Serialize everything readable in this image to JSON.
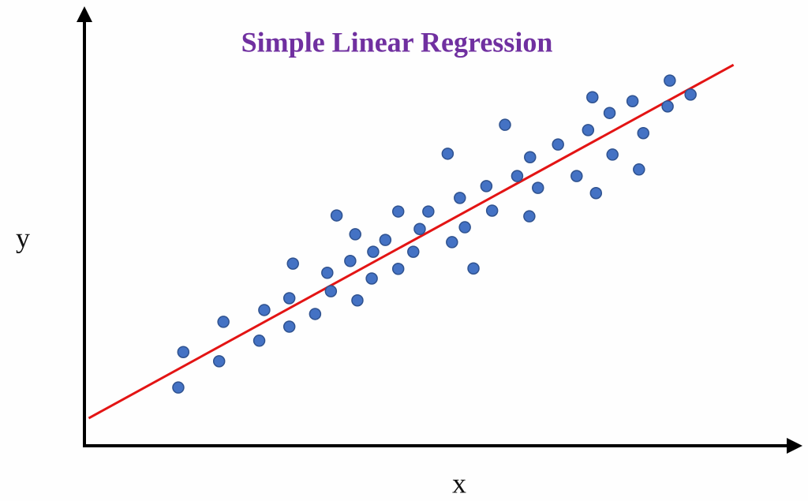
{
  "chart_data": {
    "type": "scatter",
    "title": "Simple Linear Regression",
    "title_color": "#7030a0",
    "x_label": "x",
    "y_label": "y",
    "xlim": [
      0,
      100
    ],
    "ylim": [
      0,
      100
    ],
    "series": [
      {
        "type": "scatter",
        "color": "#4472c4",
        "x": [
          13.1,
          13.8,
          19.4,
          18.8,
          24.4,
          25.1,
          28.6,
          28.6,
          29.1,
          32.2,
          33.9,
          34.4,
          35.2,
          37.1,
          37.8,
          38.1,
          40.1,
          40.3,
          42.0,
          43.8,
          43.8,
          45.9,
          46.8,
          48.0,
          50.7,
          51.3,
          52.4,
          53.1,
          54.3,
          56.1,
          56.9,
          58.7,
          60.4,
          62.1,
          62.2,
          63.3,
          66.1,
          68.7,
          70.3,
          70.9,
          71.4,
          73.3,
          73.7,
          76.5,
          77.4,
          78.0,
          81.4,
          81.7,
          84.6
        ],
        "values": [
          13.3,
          21.4,
          28.3,
          19.3,
          24.0,
          31.0,
          33.7,
          27.2,
          41.6,
          30.1,
          39.5,
          35.3,
          52.6,
          42.2,
          48.3,
          33.2,
          38.2,
          44.3,
          47.0,
          53.5,
          40.4,
          44.3,
          49.5,
          53.5,
          66.7,
          46.5,
          56.6,
          49.9,
          40.5,
          59.3,
          53.7,
          73.3,
          61.6,
          52.4,
          65.9,
          58.9,
          68.8,
          61.6,
          72.1,
          79.6,
          57.7,
          76.0,
          66.5,
          78.7,
          63.1,
          71.4,
          77.5,
          83.4,
          80.2
        ]
      },
      {
        "type": "line",
        "color": "#e31414",
        "x": [
          0.6,
          90.6
        ],
        "values": [
          6.3,
          87.0
        ]
      }
    ]
  }
}
